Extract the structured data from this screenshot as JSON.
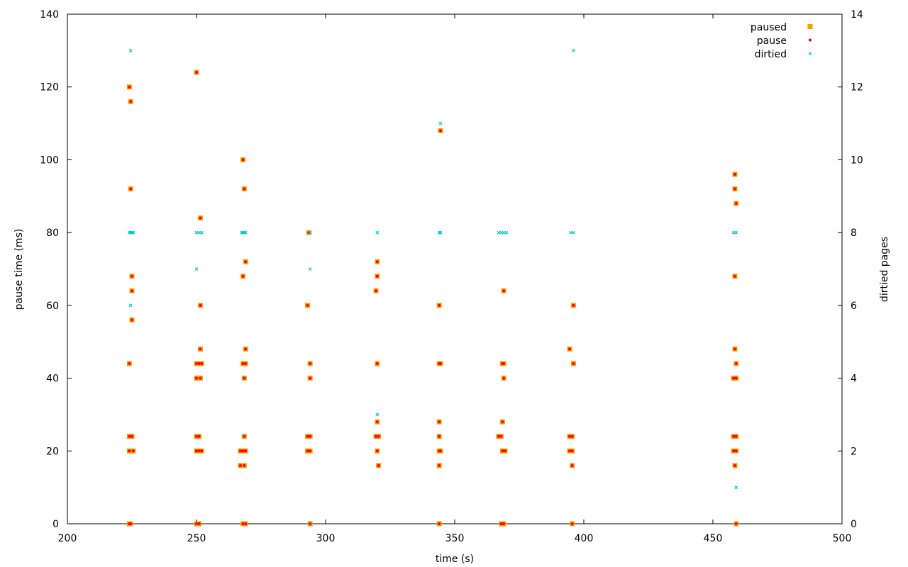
{
  "chart_data": {
    "type": "scatter",
    "title": "",
    "xlabel": "time (s)",
    "ylabel": "pause time (ms)",
    "y2label": "dirtied pages",
    "xlim": [
      200,
      500
    ],
    "ylim": [
      0,
      140
    ],
    "y2lim": [
      0,
      14
    ],
    "x_ticks": [
      "200",
      "250",
      "300",
      "350",
      "400",
      "450",
      "500"
    ],
    "y_ticks": [
      "0",
      "20",
      "40",
      "60",
      "80",
      "100",
      "120",
      "140"
    ],
    "y2_ticks": [
      "0",
      "2",
      "4",
      "6",
      "8",
      "10",
      "12",
      "14"
    ],
    "grid": false,
    "legend_position": "top-right",
    "colors": {
      "paused": "#f0a000",
      "pause": "#ff0000",
      "dirtied": "#00c8d2"
    },
    "series": [
      {
        "name": "paused",
        "marker": "square",
        "axis": "left",
        "points": [
          [
            224,
            120
          ],
          [
            224.5,
            116
          ],
          [
            224.5,
            92
          ],
          [
            225,
            68
          ],
          [
            225,
            64
          ],
          [
            225,
            56
          ],
          [
            224,
            44
          ],
          [
            224,
            24
          ],
          [
            225,
            24
          ],
          [
            224,
            20
          ],
          [
            225.5,
            20
          ],
          [
            224,
            0
          ],
          [
            224.5,
            0
          ],
          [
            250,
            124
          ],
          [
            251.5,
            84
          ],
          [
            251.5,
            60
          ],
          [
            251.5,
            48
          ],
          [
            250,
            44
          ],
          [
            251,
            44
          ],
          [
            252,
            44
          ],
          [
            250,
            40
          ],
          [
            251.5,
            40
          ],
          [
            250,
            24
          ],
          [
            251,
            24
          ],
          [
            250,
            20
          ],
          [
            251,
            20
          ],
          [
            252,
            20
          ],
          [
            250,
            0
          ],
          [
            251,
            0
          ],
          [
            268,
            100
          ],
          [
            268.5,
            92
          ],
          [
            269,
            72
          ],
          [
            268,
            68
          ],
          [
            269,
            48
          ],
          [
            268,
            44
          ],
          [
            269,
            44
          ],
          [
            268.5,
            40
          ],
          [
            268.5,
            24
          ],
          [
            267,
            20
          ],
          [
            268,
            20
          ],
          [
            269,
            20
          ],
          [
            267,
            16
          ],
          [
            268.5,
            16
          ],
          [
            268,
            0
          ],
          [
            269,
            0
          ],
          [
            293.5,
            80
          ],
          [
            293,
            60
          ],
          [
            294,
            44
          ],
          [
            294,
            40
          ],
          [
            293,
            24
          ],
          [
            294,
            24
          ],
          [
            293,
            20
          ],
          [
            294,
            20
          ],
          [
            294,
            0
          ],
          [
            320,
            72
          ],
          [
            320,
            68
          ],
          [
            319.5,
            64
          ],
          [
            320,
            44
          ],
          [
            320,
            28
          ],
          [
            319.5,
            24
          ],
          [
            320.5,
            24
          ],
          [
            320,
            20
          ],
          [
            320.5,
            16
          ],
          [
            344.5,
            108
          ],
          [
            344,
            60
          ],
          [
            344,
            44
          ],
          [
            344.5,
            44
          ],
          [
            344,
            28
          ],
          [
            344,
            24
          ],
          [
            344,
            20
          ],
          [
            344.5,
            20
          ],
          [
            344,
            16
          ],
          [
            344,
            0
          ],
          [
            369,
            64
          ],
          [
            367,
            24
          ],
          [
            368,
            24
          ],
          [
            368.5,
            44
          ],
          [
            369,
            44
          ],
          [
            369,
            40
          ],
          [
            368.5,
            28
          ],
          [
            368.5,
            20
          ],
          [
            369.5,
            20
          ],
          [
            368,
            0
          ],
          [
            369,
            0
          ],
          [
            394.5,
            48
          ],
          [
            396,
            60
          ],
          [
            396,
            44
          ],
          [
            394.5,
            24
          ],
          [
            395.5,
            24
          ],
          [
            394.5,
            20
          ],
          [
            395.5,
            20
          ],
          [
            395.5,
            16
          ],
          [
            395.5,
            0
          ],
          [
            458.5,
            96
          ],
          [
            458.5,
            92
          ],
          [
            459,
            88
          ],
          [
            458.5,
            68
          ],
          [
            458.5,
            48
          ],
          [
            459,
            44
          ],
          [
            458,
            40
          ],
          [
            459,
            40
          ],
          [
            458,
            24
          ],
          [
            459,
            24
          ],
          [
            458,
            20
          ],
          [
            459,
            20
          ],
          [
            458.5,
            16
          ],
          [
            459,
            0
          ]
        ]
      },
      {
        "name": "pause",
        "marker": "dot",
        "axis": "left",
        "points": [
          [
            224,
            120
          ],
          [
            224.5,
            116
          ],
          [
            224.5,
            92
          ],
          [
            225,
            68
          ],
          [
            225,
            64
          ],
          [
            225,
            56
          ],
          [
            224,
            44
          ],
          [
            224,
            24
          ],
          [
            225,
            24
          ],
          [
            224,
            20
          ],
          [
            225.5,
            20
          ],
          [
            224,
            0
          ],
          [
            224.5,
            0
          ],
          [
            250,
            124
          ],
          [
            251.5,
            84
          ],
          [
            251.5,
            60
          ],
          [
            251.5,
            48
          ],
          [
            250,
            44
          ],
          [
            251,
            44
          ],
          [
            252,
            44
          ],
          [
            250,
            40
          ],
          [
            251.5,
            40
          ],
          [
            250,
            24
          ],
          [
            251,
            24
          ],
          [
            250,
            20
          ],
          [
            251,
            20
          ],
          [
            252,
            20
          ],
          [
            250,
            0
          ],
          [
            251,
            0
          ],
          [
            268,
            100
          ],
          [
            268.5,
            92
          ],
          [
            269,
            72
          ],
          [
            268,
            68
          ],
          [
            269,
            48
          ],
          [
            268,
            44
          ],
          [
            269,
            44
          ],
          [
            268.5,
            40
          ],
          [
            268.5,
            24
          ],
          [
            267,
            20
          ],
          [
            268,
            20
          ],
          [
            269,
            20
          ],
          [
            267,
            16
          ],
          [
            268.5,
            16
          ],
          [
            268,
            0
          ],
          [
            269,
            0
          ],
          [
            293.5,
            80
          ],
          [
            293,
            60
          ],
          [
            294,
            44
          ],
          [
            294,
            40
          ],
          [
            293,
            24
          ],
          [
            294,
            24
          ],
          [
            293,
            20
          ],
          [
            294,
            20
          ],
          [
            294,
            0
          ],
          [
            320,
            72
          ],
          [
            320,
            68
          ],
          [
            319.5,
            64
          ],
          [
            320,
            44
          ],
          [
            320,
            28
          ],
          [
            319.5,
            24
          ],
          [
            320.5,
            24
          ],
          [
            320,
            20
          ],
          [
            320.5,
            16
          ],
          [
            344.5,
            108
          ],
          [
            344,
            60
          ],
          [
            344,
            44
          ],
          [
            344.5,
            44
          ],
          [
            344,
            28
          ],
          [
            344,
            24
          ],
          [
            344,
            20
          ],
          [
            344.5,
            20
          ],
          [
            344,
            16
          ],
          [
            344,
            0
          ],
          [
            369,
            64
          ],
          [
            367,
            24
          ],
          [
            368,
            24
          ],
          [
            368.5,
            44
          ],
          [
            369,
            44
          ],
          [
            369,
            40
          ],
          [
            368.5,
            28
          ],
          [
            368.5,
            20
          ],
          [
            369.5,
            20
          ],
          [
            368,
            0
          ],
          [
            369,
            0
          ],
          [
            394.5,
            48
          ],
          [
            396,
            60
          ],
          [
            396,
            44
          ],
          [
            394.5,
            24
          ],
          [
            395.5,
            24
          ],
          [
            394.5,
            20
          ],
          [
            395.5,
            20
          ],
          [
            395.5,
            16
          ],
          [
            395.5,
            0
          ],
          [
            458.5,
            96
          ],
          [
            458.5,
            92
          ],
          [
            459,
            88
          ],
          [
            458.5,
            68
          ],
          [
            458.5,
            48
          ],
          [
            459,
            44
          ],
          [
            458,
            40
          ],
          [
            459,
            40
          ],
          [
            458,
            24
          ],
          [
            459,
            24
          ],
          [
            458,
            20
          ],
          [
            459,
            20
          ],
          [
            458.5,
            16
          ],
          [
            459,
            0
          ]
        ]
      },
      {
        "name": "dirtied",
        "marker": "cross",
        "axis": "right",
        "points": [
          [
            224.5,
            13
          ],
          [
            224,
            8
          ],
          [
            224.5,
            8
          ],
          [
            225,
            8
          ],
          [
            225.5,
            8
          ],
          [
            224.5,
            6
          ],
          [
            250,
            8
          ],
          [
            251,
            8
          ],
          [
            252,
            8
          ],
          [
            250,
            7
          ],
          [
            267.5,
            8
          ],
          [
            268,
            8
          ],
          [
            268.5,
            8
          ],
          [
            269,
            8
          ],
          [
            294,
            8
          ],
          [
            294,
            7
          ],
          [
            320,
            8
          ],
          [
            320,
            3
          ],
          [
            344,
            8
          ],
          [
            344.5,
            8
          ],
          [
            344.5,
            11
          ],
          [
            367,
            8
          ],
          [
            368,
            8
          ],
          [
            369,
            8
          ],
          [
            370,
            8
          ],
          [
            395,
            8
          ],
          [
            396,
            8
          ],
          [
            396,
            13
          ],
          [
            458,
            8
          ],
          [
            459,
            8
          ],
          [
            459,
            1
          ]
        ]
      }
    ]
  }
}
